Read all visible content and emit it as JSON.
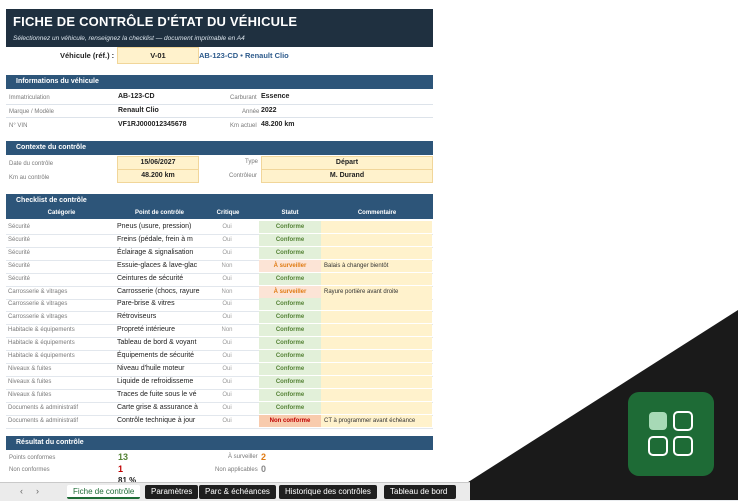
{
  "header": {
    "title": "FICHE DE CONTRÔLE D'ÉTAT DU VÉHICULE",
    "subtitle": "Sélectionnez un véhicule, renseignez la checklist — document imprimable en A4"
  },
  "vehicle_select": {
    "label": "Véhicule (réf.) :",
    "value": "V-01",
    "plate": "AB-123-CD",
    "name": "• Renault Clio"
  },
  "vehicle_info": {
    "section_title": "Informations du véhicule",
    "fields": [
      {
        "label": "Immatriculation",
        "value": "AB-123-CD"
      },
      {
        "label": "Carburant",
        "value": "Essence"
      },
      {
        "label": "Marque / Modèle",
        "value": "Renault Clio"
      },
      {
        "label": "Année",
        "value": "2022"
      },
      {
        "label": "N° VIN",
        "value": "VF1RJ000012345678"
      },
      {
        "label": "Km actuel",
        "value": "48.200 km"
      }
    ]
  },
  "context": {
    "section_title": "Contexte du contrôle",
    "fields": [
      {
        "label": "Date du contrôle",
        "value": "15/06/2027"
      },
      {
        "label": "Type",
        "value": "Départ"
      },
      {
        "label": "Km au contrôle",
        "value": "48.200 km"
      },
      {
        "label": "Contrôleur",
        "value": "M. Durand"
      }
    ]
  },
  "checklist": {
    "section_title": "Checklist de contrôle",
    "columns": [
      "Catégorie",
      "Point de contrôle",
      "Critique",
      "Statut",
      "Commentaire"
    ],
    "rows": [
      {
        "cat": "Sécurité",
        "point": "Pneus (usure, pression)",
        "crit": "Oui",
        "status": "Conforme",
        "comment": ""
      },
      {
        "cat": "Sécurité",
        "point": "Freins (pédale, frein à m",
        "crit": "Oui",
        "status": "Conforme",
        "comment": ""
      },
      {
        "cat": "Sécurité",
        "point": "Éclairage & signalisation",
        "crit": "Oui",
        "status": "Conforme",
        "comment": ""
      },
      {
        "cat": "Sécurité",
        "point": "Essuie-glaces & lave-glac",
        "crit": "Non",
        "status": "À surveiller",
        "comment": "Balais à changer bientôt"
      },
      {
        "cat": "Sécurité",
        "point": "Ceintures de sécurité",
        "crit": "Oui",
        "status": "Conforme",
        "comment": ""
      },
      {
        "cat": "Carrosserie & vitrages",
        "point": "Carrosserie (chocs, rayure",
        "crit": "Non",
        "status": "À surveiller",
        "comment": "Rayure portière avant droite"
      },
      {
        "cat": "Carrosserie & vitrages",
        "point": "Pare-brise & vitres",
        "crit": "Oui",
        "status": "Conforme",
        "comment": ""
      },
      {
        "cat": "Carrosserie & vitrages",
        "point": "Rétroviseurs",
        "crit": "Oui",
        "status": "Conforme",
        "comment": ""
      },
      {
        "cat": "Habitacle & équipements",
        "point": "Propreté intérieure",
        "crit": "Non",
        "status": "Conforme",
        "comment": ""
      },
      {
        "cat": "Habitacle & équipements",
        "point": "Tableau de bord & voyant",
        "crit": "Oui",
        "status": "Conforme",
        "comment": ""
      },
      {
        "cat": "Habitacle & équipements",
        "point": "Équipements de sécurité",
        "crit": "Oui",
        "status": "Conforme",
        "comment": ""
      },
      {
        "cat": "Niveaux & fuites",
        "point": "Niveau d'huile moteur",
        "crit": "Oui",
        "status": "Conforme",
        "comment": ""
      },
      {
        "cat": "Niveaux & fuites",
        "point": "Liquide de refroidisseme",
        "crit": "Oui",
        "status": "Conforme",
        "comment": ""
      },
      {
        "cat": "Niveaux & fuites",
        "point": "Traces de fuite sous le vé",
        "crit": "Oui",
        "status": "Conforme",
        "comment": ""
      },
      {
        "cat": "Documents & administratif",
        "point": "Carte grise & assurance à",
        "crit": "Oui",
        "status": "Conforme",
        "comment": ""
      },
      {
        "cat": "Documents & administratif",
        "point": "Contrôle technique à jour",
        "crit": "Oui",
        "status": "Non conforme",
        "comment": "CT à programmer avant échéance"
      }
    ]
  },
  "result": {
    "section_title": "Résultat du contrôle",
    "conformes_label": "Points conformes",
    "conformes_value": "13",
    "non_conformes_label": "Non conformes",
    "non_conformes_value": "1",
    "surveiller_label": "À surveiller",
    "surveiller_value": "2",
    "na_label": "Non applicables",
    "na_value": "0",
    "partial": "81 %"
  },
  "tabs": {
    "nav_prev": "‹",
    "nav_next": "›",
    "items": [
      "Fiche de contrôle",
      "Paramètres",
      "Parc & échéances",
      "Historique des contrôles",
      "Tableau de bord"
    ]
  },
  "colors": {
    "banner": "#1f3040",
    "section": "#2d5579",
    "accent": "#1e6b36",
    "conforme": "#548235",
    "surveiller": "#e07a12",
    "non_conforme": "#c00000"
  },
  "overlay": {
    "icon": "grid-app-icon"
  }
}
